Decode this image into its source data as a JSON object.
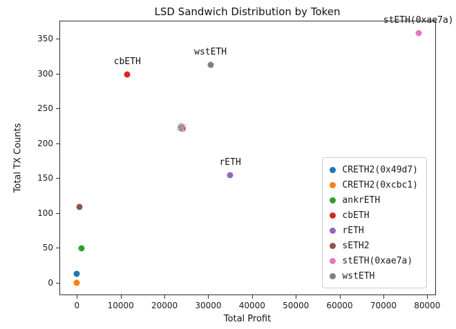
{
  "chart_data": {
    "type": "scatter",
    "title": "LSD Sandwich Distribution by Token",
    "xlabel": "Total Profit",
    "ylabel": "Total TX Counts",
    "xlim": [
      -4000,
      82000
    ],
    "ylim": [
      -18,
      376
    ],
    "x_ticks": [
      0,
      10000,
      20000,
      30000,
      40000,
      50000,
      60000,
      70000,
      80000
    ],
    "y_ticks": [
      0,
      50,
      100,
      150,
      200,
      250,
      300,
      350
    ],
    "grid": false,
    "legend_position": "lower right",
    "series": [
      {
        "name": "CRETH2(0x49d7)",
        "color": "#1f77b4",
        "x": 0,
        "y": 13,
        "label": ""
      },
      {
        "name": "CRETH2(0xcbc1)",
        "color": "#ff7f0e",
        "x": 0,
        "y": 0,
        "label": ""
      },
      {
        "name": "ankrETH",
        "color": "#2ca02c",
        "x": 1000,
        "y": 49,
        "label": ""
      },
      {
        "name": "cbETH",
        "color": "#d62728",
        "x": 11500,
        "y": 299,
        "label": "cbETH"
      },
      {
        "name": "rETH",
        "color": "#9467bd",
        "x": 35000,
        "y": 154,
        "label": "rETH"
      },
      {
        "name": "sETH2",
        "color": "#8c564b",
        "x": 500,
        "y": 109,
        "label": ""
      },
      {
        "name": "stETH(0xae7a)",
        "color": "#e377c2",
        "x": 78000,
        "y": 358,
        "label": "stETH(0xae7a)"
      },
      {
        "name": "wstETH",
        "color": "#7f7f7f",
        "x": 30500,
        "y": 313,
        "label": "wstETH"
      }
    ],
    "overlap_cluster": {
      "x": 24000,
      "y": 223,
      "colors": [
        "#1f77b4",
        "#ff7f0e",
        "#2ca02c",
        "#d62728",
        "#9467bd",
        "#e377c2"
      ]
    },
    "legend": [
      {
        "name": "CRETH2(0x49d7)",
        "color": "#1f77b4"
      },
      {
        "name": "CRETH2(0xcbc1)",
        "color": "#ff7f0e"
      },
      {
        "name": "ankrETH",
        "color": "#2ca02c"
      },
      {
        "name": "cbETH",
        "color": "#d62728"
      },
      {
        "name": "rETH",
        "color": "#9467bd"
      },
      {
        "name": "sETH2",
        "color": "#8c564b"
      },
      {
        "name": "stETH(0xae7a)",
        "color": "#e377c2"
      },
      {
        "name": "wstETH",
        "color": "#7f7f7f"
      }
    ]
  }
}
